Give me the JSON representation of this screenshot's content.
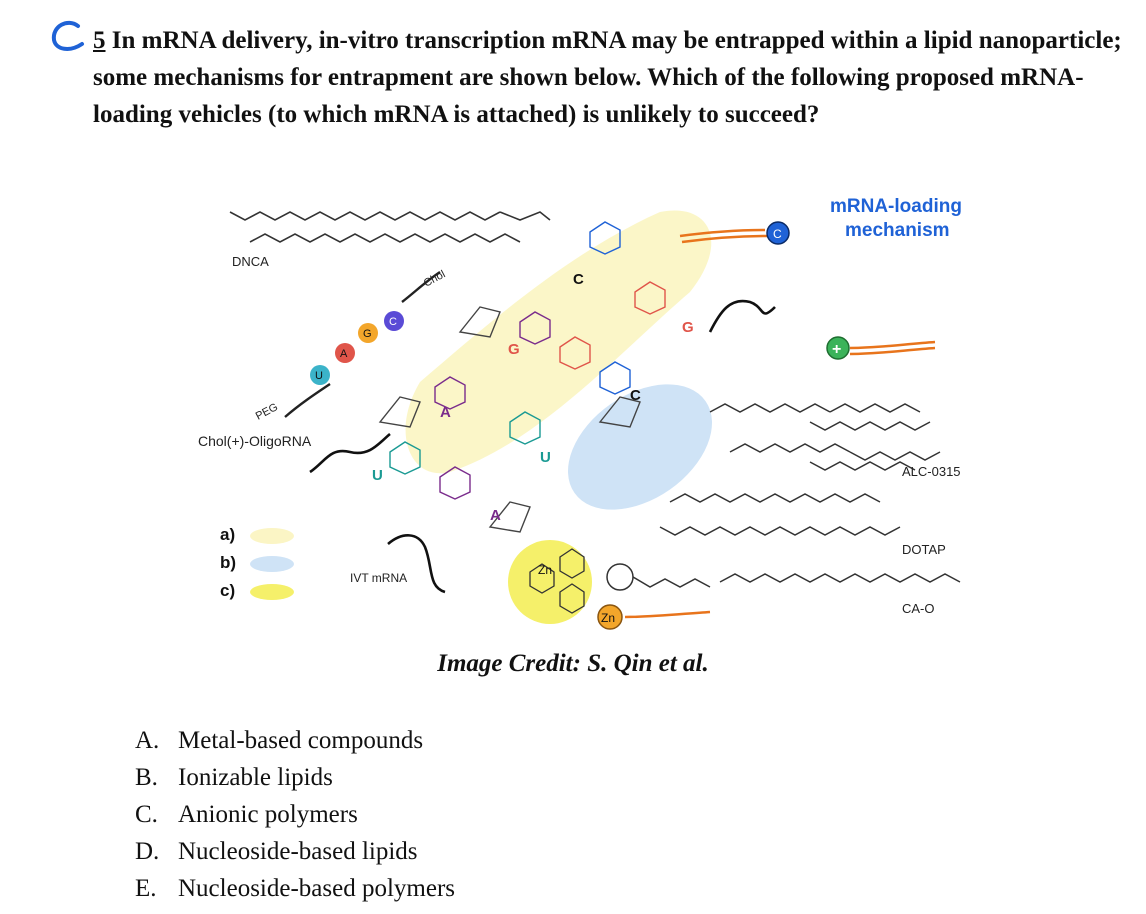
{
  "question": {
    "number": "5",
    "text": "In mRNA delivery, in-vitro transcription mRNA may be entrapped within a lipid nanoparticle; some mechanisms for entrapment are shown below. Which of the following proposed mRNA-loading vehicles (to which mRNA is attached) is unlikely to succeed?"
  },
  "figure": {
    "labels": {
      "dnca": "DNCA",
      "chol_oligo": "Chol(+)-OligoRNA",
      "peg": "PEG",
      "chol": "Chol",
      "ivt": "IVT mRNA",
      "mechanism_title_1": "mRNA-loading",
      "mechanism_title_2": "mechanism",
      "alc": "ALC-0315",
      "dotap": "DOTAP",
      "cao": "CA-O",
      "zn": "Zn",
      "c_bead": "C",
      "plus_bead": "+"
    },
    "legend": [
      {
        "key": "a)",
        "color": "#fbf5c5"
      },
      {
        "key": "b)",
        "color": "#cfe3f6"
      },
      {
        "key": "c)",
        "color": "#f5f06a"
      }
    ],
    "bases": {
      "u": "U",
      "a": "A",
      "g": "G",
      "c": "C"
    },
    "colors": {
      "accent_blue": "#1f62d6",
      "orange": "#e8741c",
      "green_bead": "#3bb35a",
      "purple_base": "#7a2c8c",
      "red_base": "#e0554a",
      "teal_base": "#1a9a93"
    }
  },
  "credit": "Image Credit: S. Qin et al.",
  "choices": [
    {
      "letter": "A.",
      "text": "Metal-based compounds"
    },
    {
      "letter": "B.",
      "text": "Ionizable lipids"
    },
    {
      "letter": "C.",
      "text": "Anionic polymers"
    },
    {
      "letter": "D.",
      "text": "Nucleoside-based lipids"
    },
    {
      "letter": "E.",
      "text": "Nucleoside-based polymers"
    }
  ]
}
